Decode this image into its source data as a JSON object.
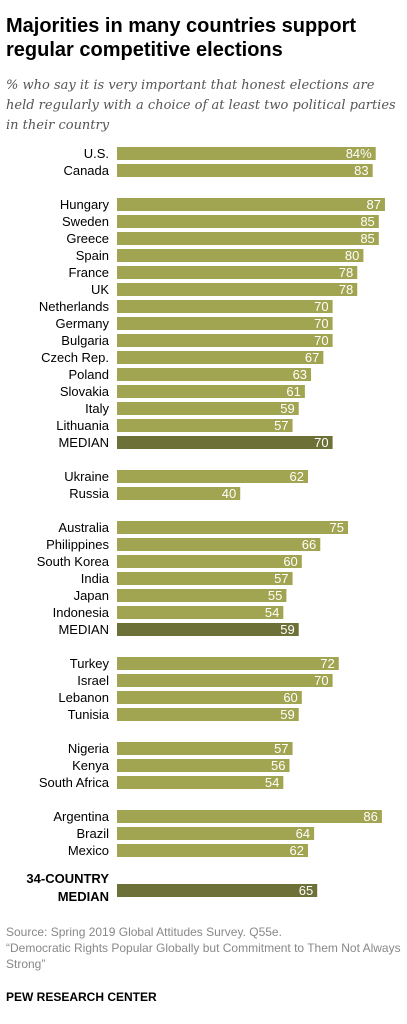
{
  "title": "Majorities in many countries support regular competitive elections",
  "subtitle": "% who say it is very important that honest elections are held regularly with a choice of at least two political parties in their country",
  "source": "Source: Spring 2019 Global Attitudes Survey. Q55e.",
  "report": "“Democratic Rights Popular Globally but Commitment to Them Not Always Strong”",
  "org": "PEW RESEARCH CENTER",
  "colors": {
    "bar": "#a1a450",
    "median": "#6d7138"
  },
  "chart_data": {
    "type": "bar",
    "orientation": "horizontal",
    "groups": [
      {
        "rows": [
          {
            "label": "U.S.",
            "value": 84,
            "display": "84%"
          },
          {
            "label": "Canada",
            "value": 83,
            "display": "83"
          }
        ]
      },
      {
        "rows": [
          {
            "label": "Hungary",
            "value": 87,
            "display": "87"
          },
          {
            "label": "Sweden",
            "value": 85,
            "display": "85"
          },
          {
            "label": "Greece",
            "value": 85,
            "display": "85"
          },
          {
            "label": "Spain",
            "value": 80,
            "display": "80"
          },
          {
            "label": "France",
            "value": 78,
            "display": "78"
          },
          {
            "label": "UK",
            "value": 78,
            "display": "78"
          },
          {
            "label": "Netherlands",
            "value": 70,
            "display": "70"
          },
          {
            "label": "Germany",
            "value": 70,
            "display": "70"
          },
          {
            "label": "Bulgaria",
            "value": 70,
            "display": "70"
          },
          {
            "label": "Czech Rep.",
            "value": 67,
            "display": "67"
          },
          {
            "label": "Poland",
            "value": 63,
            "display": "63"
          },
          {
            "label": "Slovakia",
            "value": 61,
            "display": "61"
          },
          {
            "label": "Italy",
            "value": 59,
            "display": "59"
          },
          {
            "label": "Lithuania",
            "value": 57,
            "display": "57"
          },
          {
            "label": "MEDIAN",
            "value": 70,
            "display": "70",
            "median": true
          }
        ]
      },
      {
        "rows": [
          {
            "label": "Ukraine",
            "value": 62,
            "display": "62"
          },
          {
            "label": "Russia",
            "value": 40,
            "display": "40"
          }
        ]
      },
      {
        "rows": [
          {
            "label": "Australia",
            "value": 75,
            "display": "75"
          },
          {
            "label": "Philippines",
            "value": 66,
            "display": "66"
          },
          {
            "label": "South Korea",
            "value": 60,
            "display": "60"
          },
          {
            "label": "India",
            "value": 57,
            "display": "57"
          },
          {
            "label": "Japan",
            "value": 55,
            "display": "55"
          },
          {
            "label": "Indonesia",
            "value": 54,
            "display": "54"
          },
          {
            "label": "MEDIAN",
            "value": 59,
            "display": "59",
            "median": true
          }
        ]
      },
      {
        "rows": [
          {
            "label": "Turkey",
            "value": 72,
            "display": "72"
          },
          {
            "label": "Israel",
            "value": 70,
            "display": "70"
          },
          {
            "label": "Lebanon",
            "value": 60,
            "display": "60"
          },
          {
            "label": "Tunisia",
            "value": 59,
            "display": "59"
          }
        ]
      },
      {
        "rows": [
          {
            "label": "Nigeria",
            "value": 57,
            "display": "57"
          },
          {
            "label": "Kenya",
            "value": 56,
            "display": "56"
          },
          {
            "label": "South Africa",
            "value": 54,
            "display": "54"
          }
        ]
      },
      {
        "rows": [
          {
            "label": "Argentina",
            "value": 86,
            "display": "86"
          },
          {
            "label": "Brazil",
            "value": 64,
            "display": "64"
          },
          {
            "label": "Mexico",
            "value": 62,
            "display": "62"
          }
        ]
      },
      {
        "rows": [
          {
            "label": "34-COUNTRY\nMEDIAN",
            "value": 65,
            "display": "65",
            "median": true,
            "overall": true
          }
        ]
      }
    ]
  }
}
